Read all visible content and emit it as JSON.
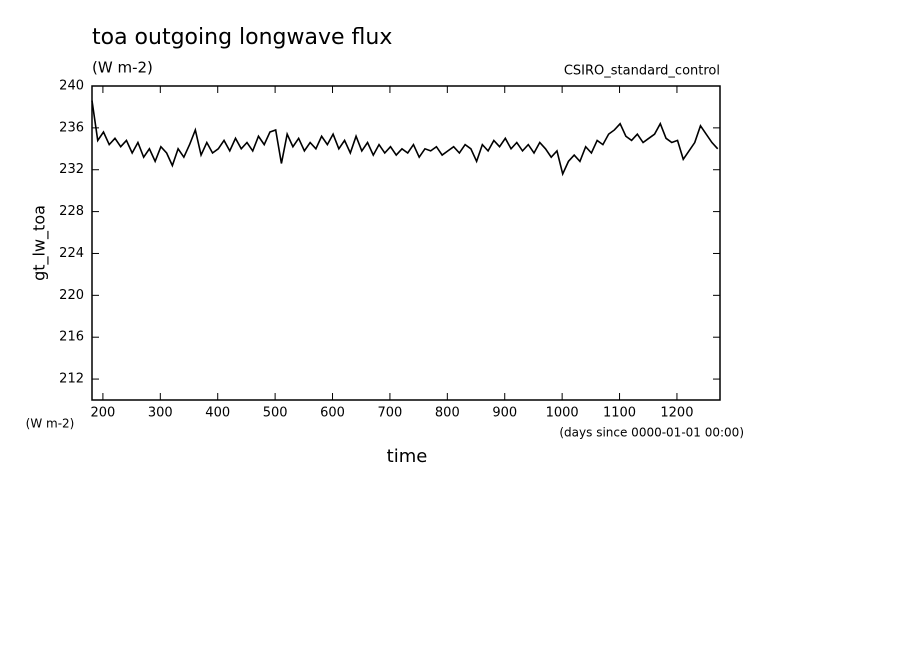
{
  "chart_data": {
    "type": "line",
    "title": "toa outgoing longwave flux",
    "subtitle": "(W m-2)",
    "dataset": "CSIRO_standard_control",
    "ylabel": "gt_lw_toa",
    "y_units": "(W m-2)",
    "xlabel": "time",
    "x_units": "(days since 0000-01-01 00:00)",
    "color": "#000000",
    "xlim": [
      181,
      1275
    ],
    "ylim": [
      210,
      240
    ],
    "xticks": [
      200,
      300,
      400,
      500,
      600,
      700,
      800,
      900,
      1000,
      1100,
      1200
    ],
    "yticks": [
      212,
      216,
      220,
      224,
      228,
      232,
      236,
      240
    ],
    "x": [
      181,
      191,
      201,
      211,
      221,
      231,
      241,
      251,
      261,
      271,
      281,
      291,
      301,
      311,
      321,
      331,
      341,
      351,
      361,
      371,
      381,
      391,
      401,
      411,
      421,
      431,
      441,
      451,
      461,
      471,
      481,
      491,
      501,
      511,
      521,
      531,
      541,
      551,
      561,
      571,
      581,
      591,
      601,
      611,
      621,
      631,
      641,
      651,
      661,
      671,
      681,
      691,
      701,
      711,
      721,
      731,
      741,
      751,
      761,
      771,
      781,
      791,
      801,
      811,
      821,
      831,
      841,
      851,
      861,
      871,
      881,
      891,
      901,
      911,
      921,
      931,
      941,
      951,
      961,
      971,
      981,
      991,
      1001,
      1011,
      1021,
      1031,
      1041,
      1051,
      1061,
      1071,
      1081,
      1091,
      1101,
      1111,
      1121,
      1131,
      1141,
      1151,
      1161,
      1171,
      1181,
      1191,
      1201,
      1211,
      1221,
      1231,
      1241,
      1251,
      1261,
      1271
    ],
    "values": [
      238.6,
      234.8,
      235.6,
      234.4,
      235.0,
      234.2,
      234.8,
      233.6,
      234.6,
      233.2,
      234.0,
      232.8,
      234.2,
      233.6,
      232.4,
      234.0,
      233.2,
      234.4,
      235.8,
      233.4,
      234.6,
      233.6,
      234.0,
      234.8,
      233.8,
      235.0,
      234.0,
      234.6,
      233.8,
      235.2,
      234.4,
      235.6,
      235.8,
      232.6,
      235.4,
      234.2,
      235.0,
      233.8,
      234.6,
      234.0,
      235.2,
      234.4,
      235.4,
      234.0,
      234.8,
      233.6,
      235.2,
      233.8,
      234.6,
      233.4,
      234.4,
      233.6,
      234.2,
      233.4,
      234.0,
      233.6,
      234.4,
      233.2,
      234.0,
      233.8,
      234.2,
      233.4,
      233.8,
      234.2,
      233.6,
      234.4,
      234.0,
      232.8,
      234.4,
      233.8,
      234.8,
      234.2,
      235.0,
      234.0,
      234.6,
      233.8,
      234.4,
      233.6,
      234.6,
      234.0,
      233.2,
      233.8,
      231.6,
      232.8,
      233.4,
      232.8,
      234.2,
      233.6,
      234.8,
      234.4,
      235.4,
      235.8,
      236.4,
      235.2,
      234.8,
      235.4,
      234.6,
      235.0,
      235.4,
      236.4,
      235.0,
      234.6,
      234.8,
      233.0,
      233.8,
      234.6,
      236.2,
      235.4,
      234.6,
      234.0
    ]
  }
}
